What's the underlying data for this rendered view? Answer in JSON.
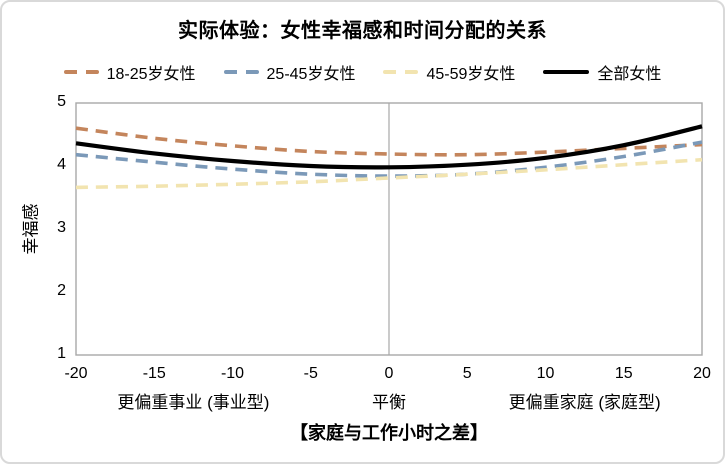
{
  "title": "实际体验：女性幸福感和时间分配的关系",
  "chart_data": {
    "type": "line",
    "title": "实际体验：女性幸福感和时间分配的关系",
    "x": [
      -20,
      -15,
      -10,
      -5,
      0,
      5,
      10,
      15,
      20
    ],
    "series": [
      {
        "name": "18-25岁女性",
        "color": "#c4855c",
        "style": "dashed",
        "values": [
          4.6,
          4.44,
          4.32,
          4.23,
          4.19,
          4.18,
          4.22,
          4.28,
          4.34
        ]
      },
      {
        "name": "25-45岁女性",
        "color": "#7b99b8",
        "style": "dashed",
        "values": [
          4.18,
          4.06,
          3.95,
          3.87,
          3.84,
          3.87,
          3.98,
          4.15,
          4.38
        ]
      },
      {
        "name": "45-59岁女性",
        "color": "#f2e4b0",
        "style": "dashed",
        "values": [
          3.66,
          3.68,
          3.71,
          3.75,
          3.81,
          3.87,
          3.94,
          4.02,
          4.1
        ]
      },
      {
        "name": "全部女性",
        "color": "#000000",
        "style": "solid",
        "values": [
          4.36,
          4.2,
          4.08,
          4.0,
          3.98,
          4.02,
          4.13,
          4.33,
          4.63
        ]
      }
    ],
    "xlabel": "【家庭与工作小时之差】",
    "ylabel": "幸福感",
    "xlim": [
      -20,
      20
    ],
    "ylim": [
      1,
      5
    ],
    "xticks": [
      -20,
      -15,
      -10,
      -5,
      0,
      5,
      10,
      15,
      20
    ],
    "yticks": [
      5,
      4,
      3,
      2,
      1
    ],
    "region_labels": [
      {
        "text": "更偏重事业 (事业型)",
        "x": -12.5
      },
      {
        "text": "平衡",
        "x": 0
      },
      {
        "text": "更偏重家庭 (家庭型)",
        "x": 12.5
      }
    ],
    "center_line_x": 0,
    "legend_position": "top",
    "grid": false
  },
  "colors": {
    "axis": "#a8a8a8",
    "text": "#000000",
    "card_border": "#d9d9d9",
    "background": "#ffffff"
  }
}
